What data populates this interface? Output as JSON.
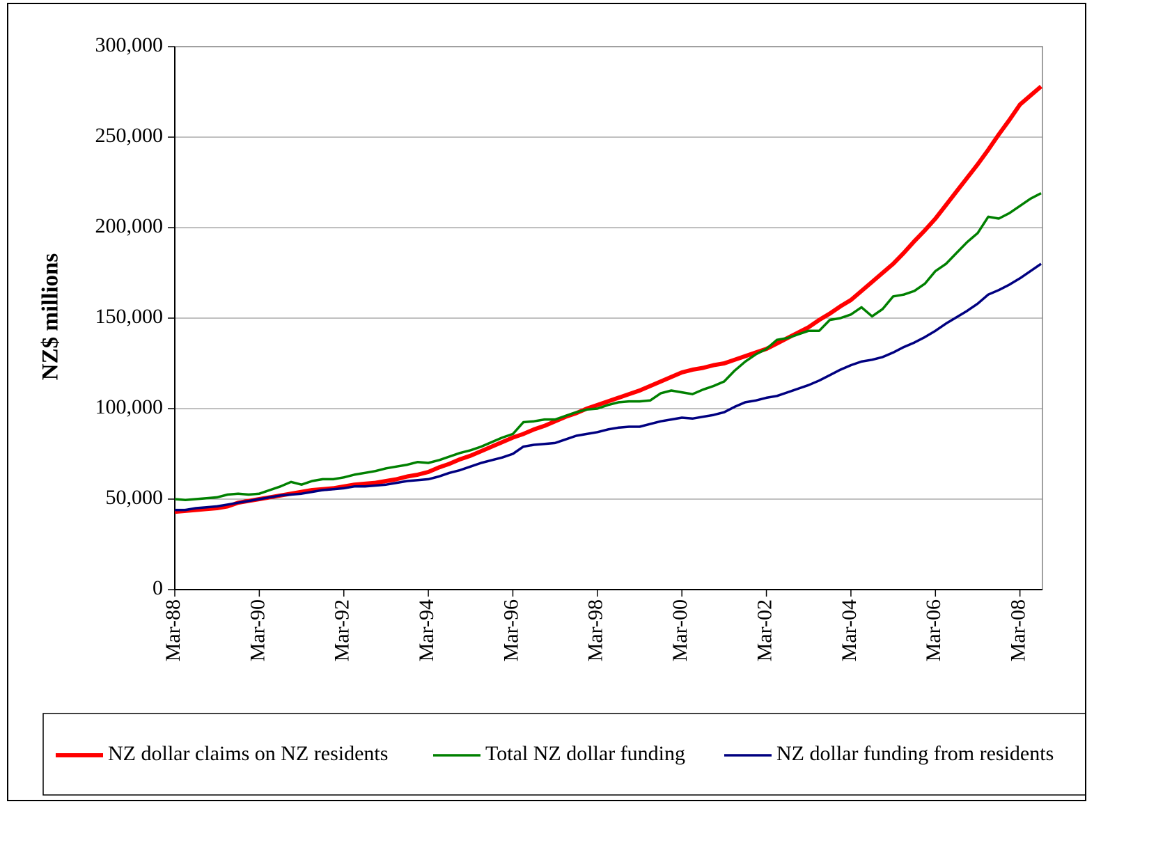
{
  "chart_data": {
    "type": "line",
    "y_label": "NZ$ millions",
    "categories": [
      "Mar-88",
      null,
      null,
      null,
      null,
      null,
      null,
      null,
      "Mar-90",
      null,
      null,
      null,
      null,
      null,
      null,
      null,
      "Mar-92",
      null,
      null,
      null,
      null,
      null,
      null,
      null,
      "Mar-94",
      null,
      null,
      null,
      null,
      null,
      null,
      null,
      "Mar-96",
      null,
      null,
      null,
      null,
      null,
      null,
      null,
      "Mar-98",
      null,
      null,
      null,
      null,
      null,
      null,
      null,
      "Mar-00",
      null,
      null,
      null,
      null,
      null,
      null,
      null,
      "Mar-02",
      null,
      null,
      null,
      null,
      null,
      null,
      null,
      "Mar-04",
      null,
      null,
      null,
      null,
      null,
      null,
      null,
      "Mar-06",
      null,
      null,
      null,
      null,
      null,
      null,
      null,
      "Mar-08",
      null,
      null
    ],
    "series": [
      {
        "name": "NZ dollar claims on NZ residents",
        "color": "#ff0000",
        "width": 6,
        "values": [
          43000,
          43500,
          44000,
          44500,
          45000,
          46000,
          48000,
          49000,
          50000,
          51000,
          52000,
          53000,
          54000,
          55000,
          55500,
          56000,
          57000,
          58000,
          58500,
          59000,
          60000,
          61000,
          62500,
          63500,
          65000,
          67500,
          69500,
          72000,
          74000,
          76500,
          79000,
          81500,
          84000,
          86000,
          88500,
          90500,
          93000,
          95500,
          97500,
          100000,
          102000,
          104000,
          106000,
          108000,
          110000,
          112500,
          115000,
          117500,
          120000,
          121500,
          122500,
          124000,
          125000,
          127000,
          129000,
          131000,
          133000,
          136000,
          139000,
          142000,
          145000,
          149000,
          152500,
          156500,
          160000,
          165000,
          170000,
          175000,
          180000,
          186000,
          192500,
          198500,
          205000,
          212500,
          220000,
          227500,
          235000,
          243000,
          251500,
          259500,
          268000,
          273000,
          278000
        ]
      },
      {
        "name": "Total NZ dollar funding",
        "color": "#008000",
        "width": 3.5,
        "values": [
          50000,
          49500,
          50000,
          50500,
          51000,
          52500,
          53000,
          52500,
          53000,
          55000,
          57000,
          59500,
          58000,
          60000,
          61000,
          61000,
          62000,
          63500,
          64500,
          65500,
          67000,
          68000,
          69000,
          70500,
          70000,
          71500,
          73500,
          75500,
          77000,
          79000,
          81500,
          84000,
          86000,
          92500,
          93000,
          94000,
          94000,
          96000,
          98000,
          99500,
          100000,
          102000,
          103500,
          104000,
          104000,
          104500,
          108500,
          110000,
          109000,
          108000,
          110500,
          112500,
          115000,
          121000,
          126000,
          130000,
          133000,
          138000,
          139000,
          141000,
          143000,
          143000,
          149000,
          150000,
          152000,
          156000,
          151000,
          155000,
          162000,
          163000,
          165000,
          169000,
          176000,
          180000,
          186000,
          192000,
          197000,
          206000,
          205000,
          208000,
          212000,
          216000,
          219000
        ]
      },
      {
        "name": "NZ dollar funding from residents",
        "color": "#000080",
        "width": 3.5,
        "values": [
          44000,
          44000,
          45000,
          45500,
          46000,
          47000,
          48000,
          49000,
          50000,
          51000,
          52000,
          52500,
          53000,
          54000,
          55000,
          55500,
          56000,
          57000,
          57000,
          57500,
          58000,
          59000,
          60000,
          60500,
          61000,
          62500,
          64500,
          66000,
          68000,
          70000,
          71500,
          73000,
          75000,
          79000,
          80000,
          80500,
          81000,
          83000,
          85000,
          86000,
          87000,
          88500,
          89500,
          90000,
          90000,
          91500,
          93000,
          94000,
          95000,
          94500,
          95500,
          96500,
          98000,
          101000,
          103500,
          104500,
          106000,
          107000,
          109000,
          111000,
          113000,
          115500,
          118500,
          121500,
          124000,
          126000,
          127000,
          128500,
          131000,
          134000,
          136500,
          139500,
          143000,
          147000,
          150500,
          154000,
          158000,
          163000,
          165500,
          168500,
          172000,
          176000,
          180000
        ]
      }
    ],
    "ylim": [
      0,
      300000
    ],
    "yticks": [
      0,
      {
        "value": 50000,
        "label": "50,000"
      },
      {
        "value": 100000,
        "label": "100,000"
      },
      {
        "value": 150000,
        "label": "150,000"
      },
      {
        "value": 200000,
        "label": "200,000"
      },
      {
        "value": 250000,
        "label": "250,000"
      },
      {
        "value": 300000,
        "label": "300,000"
      }
    ],
    "grid": true,
    "legend": "bottom"
  }
}
